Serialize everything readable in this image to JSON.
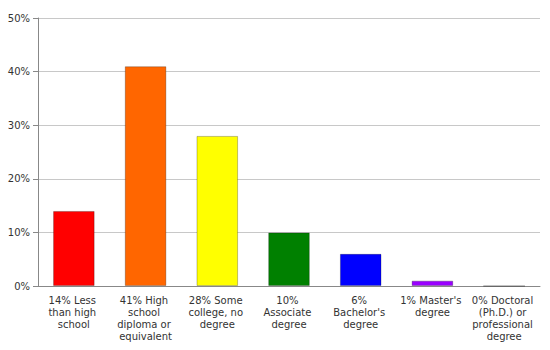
{
  "chart_data": {
    "type": "bar",
    "categories": [
      "14% Less than high school",
      "41% High school diploma or equivalent",
      "28% Some college, no degree",
      "10% Associate degree",
      "6% Bachelor's degree",
      "1% Master's degree",
      "0% Doctoral (Ph.D.) or professional degree"
    ],
    "values": [
      14,
      41,
      28,
      10,
      6,
      1,
      0
    ],
    "colors": [
      "#ff0000",
      "#ff6600",
      "#ffff00",
      "#008000",
      "#0000ff",
      "#9900ff",
      "#ff00ff"
    ],
    "ylim": [
      0,
      50
    ],
    "yticks": [
      {
        "value": 0,
        "label": "0%"
      },
      {
        "value": 10,
        "label": "10%"
      },
      {
        "value": 20,
        "label": "20%"
      },
      {
        "value": 30,
        "label": "30%"
      },
      {
        "value": 40,
        "label": "40%"
      },
      {
        "value": 50,
        "label": "50%"
      }
    ],
    "grid": true
  }
}
